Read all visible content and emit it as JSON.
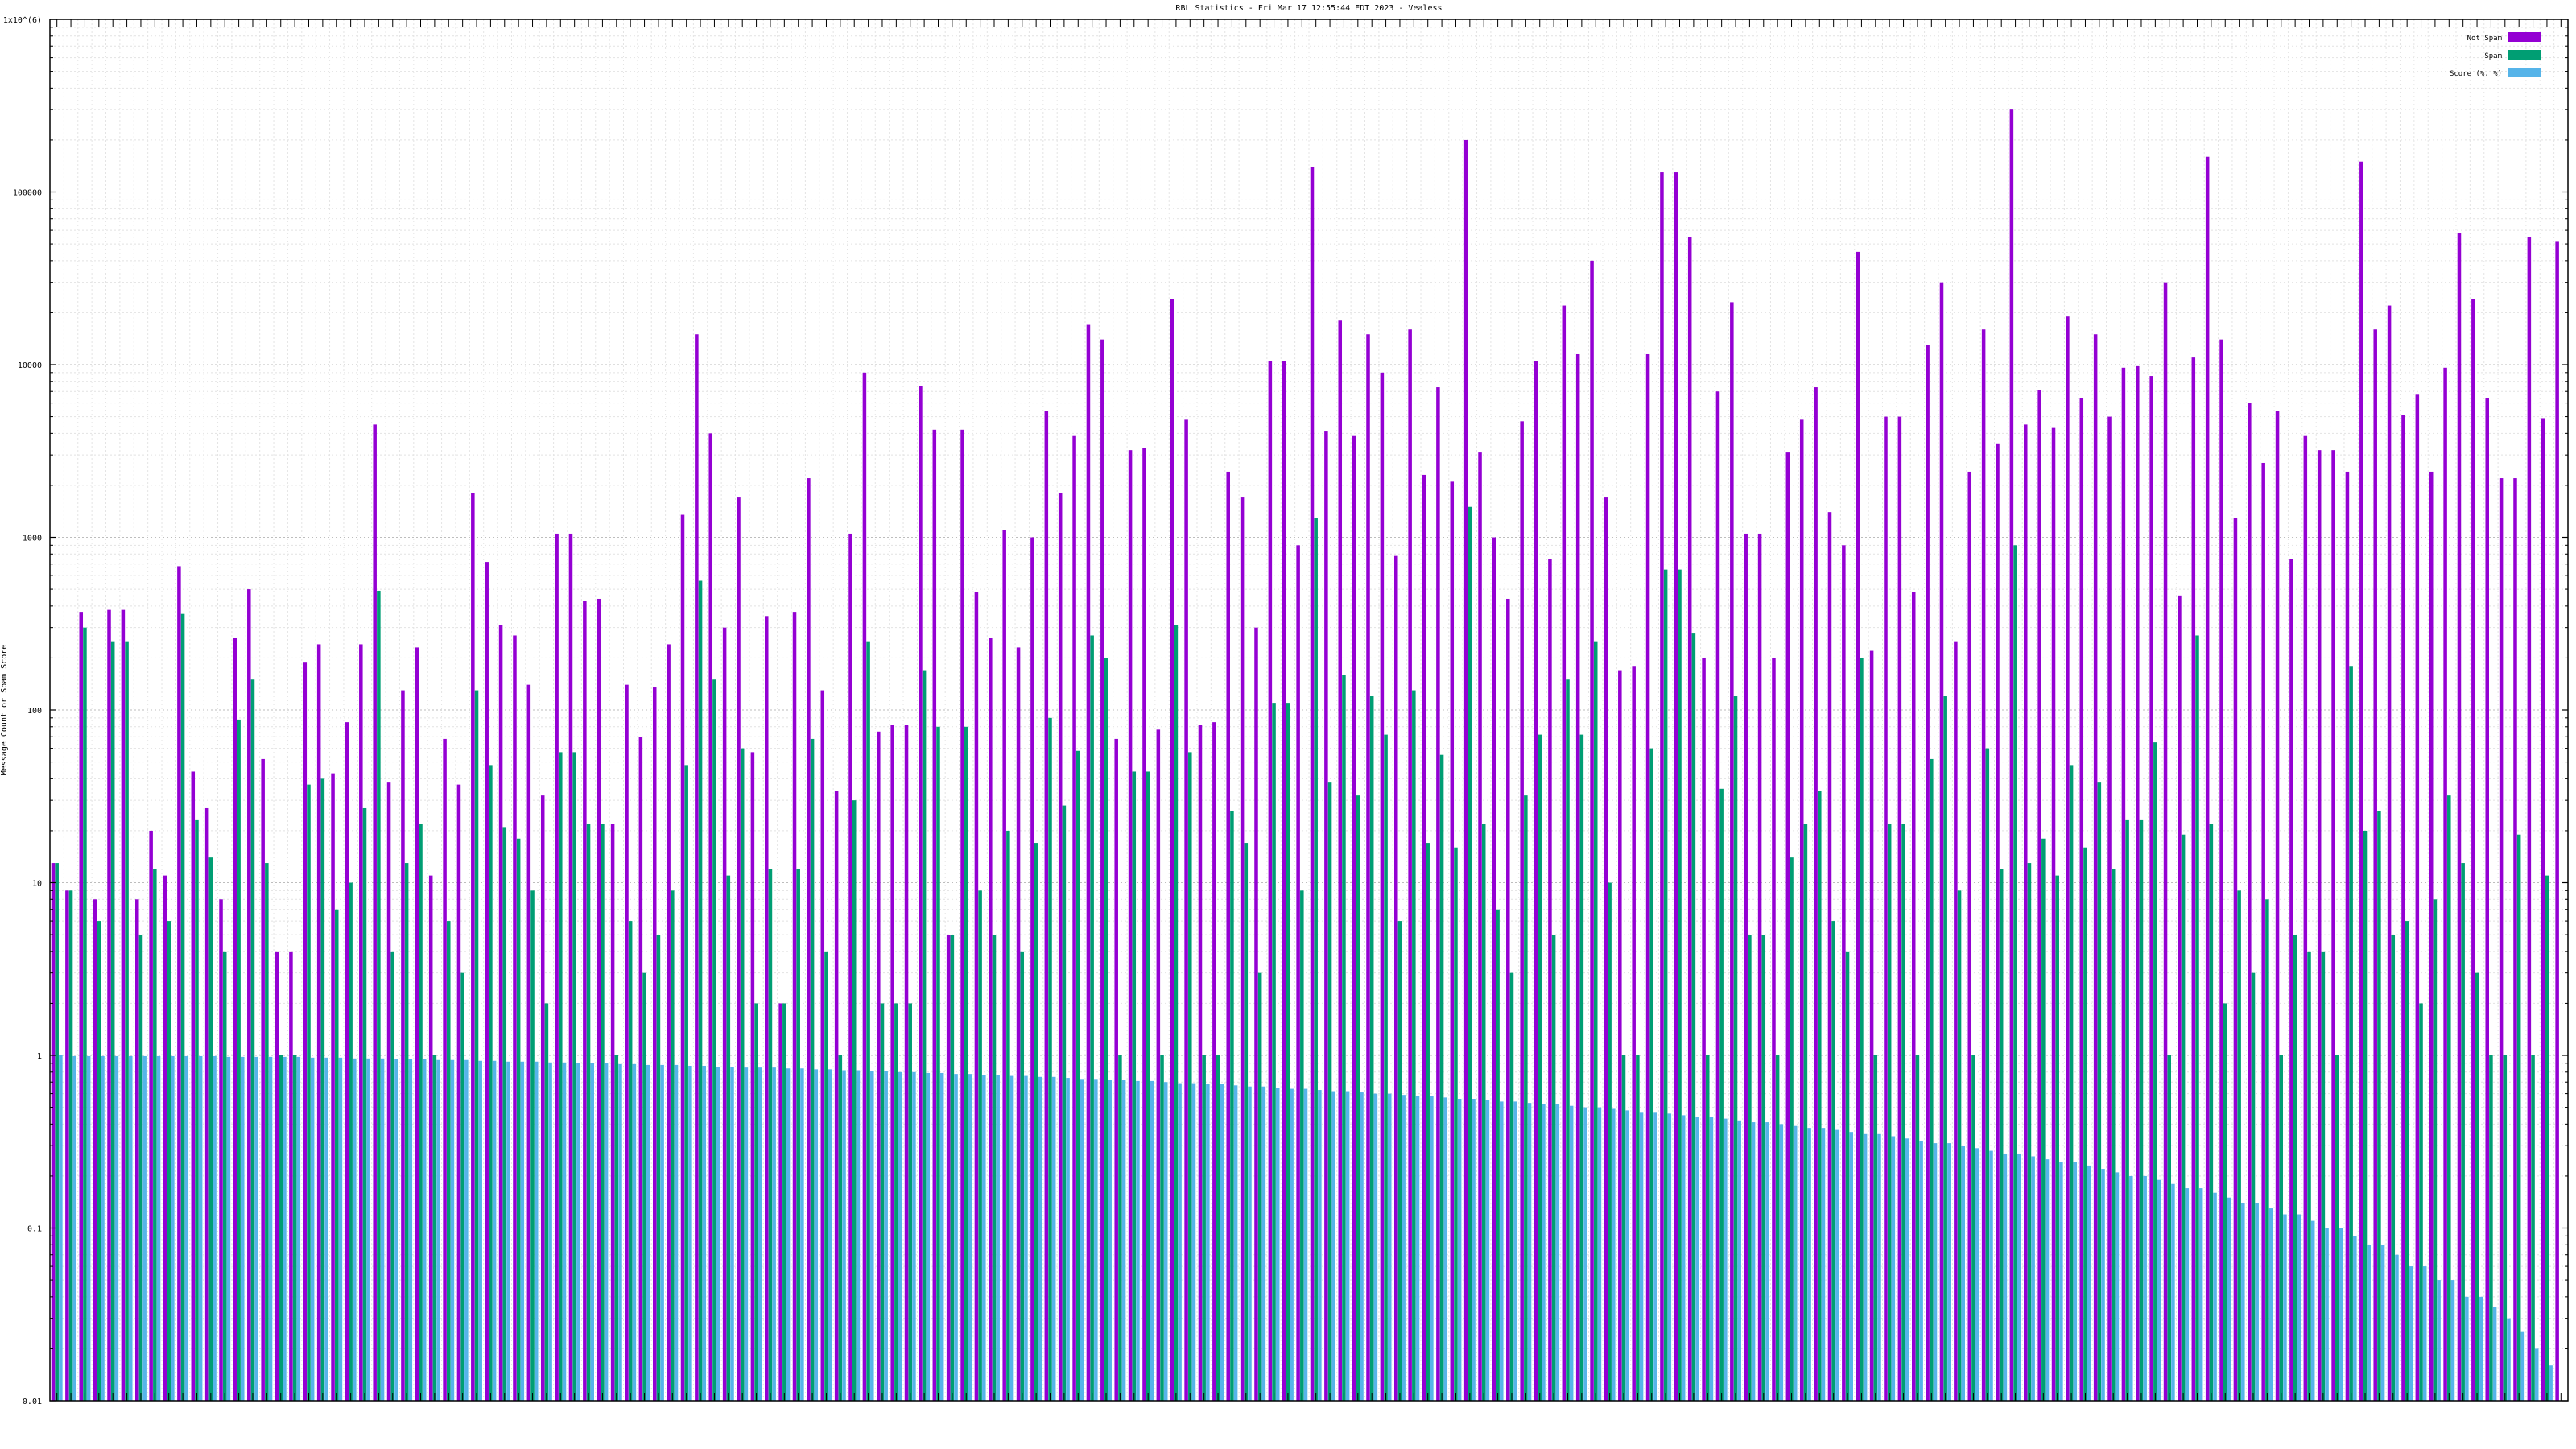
{
  "chart_data": {
    "type": "bar",
    "title": "RBL Statistics - Fri Mar 17 12:55:44 EDT 2023 - Vealess",
    "ylabel": "Message Count or Spam Score",
    "xlabel": "",
    "yscale": "log",
    "ylim": [
      0.01,
      1000000
    ],
    "ytick_labels": [
      "0.01",
      "0.1",
      "1",
      "10",
      "100",
      "1000",
      "10000",
      "100000",
      "1x10^(6)"
    ],
    "ytick_values": [
      0.01,
      0.1,
      1,
      10,
      100,
      1000,
      10000,
      100000,
      1000000
    ],
    "grid": true,
    "legend_position": "top-right",
    "colors": {
      "not_spam": "#9400d3",
      "spam": "#009e73",
      "score": "#56b4e9"
    },
    "series": [
      {
        "name": "Not Spam",
        "color": "#9400d3",
        "values": [
          13,
          9,
          370,
          8,
          380,
          380,
          8,
          20,
          11,
          680,
          44,
          27,
          8,
          260,
          500,
          52,
          4,
          4,
          190,
          240,
          43,
          85,
          240,
          4500,
          38,
          130,
          230,
          11,
          68,
          37,
          1800,
          720,
          310,
          270,
          140,
          32,
          1050,
          1050,
          430,
          440,
          22,
          140,
          70,
          135,
          240,
          1350,
          15000,
          4000,
          300,
          1700,
          57,
          350,
          2,
          370,
          2200,
          130,
          34,
          1050,
          9000,
          75,
          82,
          82,
          7500,
          4200,
          5,
          4200,
          480,
          260,
          1100,
          230,
          1000,
          5400,
          1800,
          3900,
          17000,
          14000,
          68,
          3200,
          3300,
          77,
          24000,
          4800,
          82,
          85,
          2400,
          1700,
          300,
          10500,
          10500,
          900,
          140000,
          4100,
          18000,
          3900,
          15000,
          9000,
          780,
          16000,
          2300,
          7400,
          2100,
          200000,
          3100,
          1000,
          440,
          4700,
          10500,
          750,
          22000,
          11500,
          40000,
          1700,
          170,
          180,
          11500,
          130000,
          130000,
          55000,
          200,
          7000,
          23000,
          1050,
          1050,
          200,
          3100,
          4800,
          7400,
          1400,
          900,
          45000,
          220,
          5000,
          5000,
          480,
          13000,
          30000,
          250,
          2400,
          16000,
          3500,
          300000,
          4500,
          7100,
          4300,
          19000,
          6400,
          15000,
          5000,
          9600,
          9800,
          8600,
          30000,
          460,
          11000,
          160000,
          14000,
          1300,
          6000,
          2700,
          5400,
          750,
          3900,
          3200,
          3200,
          2400,
          150000,
          16000,
          22000,
          5100,
          6700,
          2400,
          9600,
          58000,
          24000,
          6400,
          2200,
          2200,
          55000,
          4900,
          52000
        ]
      },
      {
        "name": "Spam",
        "color": "#009e73",
        "values": [
          13,
          9,
          300,
          6,
          250,
          250,
          5,
          12,
          6,
          360,
          23,
          14,
          4,
          88,
          150,
          13,
          1,
          1,
          37,
          40,
          7,
          10,
          27,
          490,
          4,
          13,
          22,
          1,
          6,
          3,
          130,
          48,
          21,
          18,
          9,
          2,
          57,
          57,
          22,
          22,
          1,
          6,
          3,
          5,
          9,
          48,
          560,
          150,
          11,
          60,
          2,
          12,
          2,
          12,
          68,
          4,
          1,
          30,
          250,
          2,
          2,
          2,
          170,
          80,
          5,
          80,
          9,
          5,
          20,
          4,
          17,
          90,
          28,
          58,
          270,
          200,
          1,
          44,
          44,
          1,
          310,
          57,
          1,
          1,
          26,
          17,
          3,
          110,
          110,
          9,
          1300,
          38,
          160,
          32,
          120,
          72,
          6,
          130,
          17,
          55,
          16,
          1500,
          22,
          7,
          3,
          32,
          72,
          5,
          150,
          72,
          250,
          10,
          1,
          1,
          60,
          650,
          650,
          280,
          1,
          35,
          120,
          5,
          5,
          1,
          14,
          22,
          34,
          6,
          4,
          200,
          1,
          22,
          22,
          1,
          52,
          120,
          9,
          1,
          60,
          12,
          900,
          13,
          18,
          11,
          48,
          16,
          38,
          12,
          23,
          23,
          65,
          1,
          19,
          270,
          22,
          2,
          9,
          3,
          8,
          1,
          5,
          4,
          4,
          1,
          180,
          20,
          26,
          5,
          6,
          2,
          8,
          32,
          13,
          3,
          1,
          1,
          19,
          1,
          11
        ]
      },
      {
        "name": "Score (%, %)",
        "color": "#56b4e9",
        "values": [
          1,
          0.99,
          0.99,
          0.99,
          0.99,
          0.99,
          0.99,
          0.99,
          0.99,
          0.99,
          0.99,
          0.99,
          0.98,
          0.98,
          0.98,
          0.98,
          0.98,
          0.98,
          0.97,
          0.97,
          0.97,
          0.96,
          0.96,
          0.96,
          0.95,
          0.95,
          0.95,
          0.94,
          0.94,
          0.94,
          0.93,
          0.93,
          0.92,
          0.92,
          0.92,
          0.91,
          0.91,
          0.9,
          0.9,
          0.9,
          0.89,
          0.89,
          0.88,
          0.88,
          0.88,
          0.87,
          0.87,
          0.86,
          0.86,
          0.85,
          0.85,
          0.85,
          0.84,
          0.84,
          0.83,
          0.83,
          0.82,
          0.82,
          0.81,
          0.81,
          0.8,
          0.8,
          0.79,
          0.79,
          0.78,
          0.78,
          0.77,
          0.77,
          0.76,
          0.76,
          0.75,
          0.75,
          0.74,
          0.73,
          0.73,
          0.72,
          0.72,
          0.71,
          0.71,
          0.7,
          0.69,
          0.69,
          0.68,
          0.68,
          0.67,
          0.66,
          0.66,
          0.65,
          0.64,
          0.64,
          0.63,
          0.62,
          0.62,
          0.61,
          0.6,
          0.6,
          0.59,
          0.58,
          0.58,
          0.57,
          0.56,
          0.56,
          0.55,
          0.54,
          0.54,
          0.53,
          0.52,
          0.52,
          0.51,
          0.5,
          0.5,
          0.49,
          0.48,
          0.47,
          0.47,
          0.46,
          0.45,
          0.44,
          0.44,
          0.43,
          0.42,
          0.41,
          0.41,
          0.4,
          0.39,
          0.38,
          0.38,
          0.37,
          0.36,
          0.35,
          0.35,
          0.34,
          0.33,
          0.32,
          0.31,
          0.31,
          0.3,
          0.29,
          0.28,
          0.27,
          0.27,
          0.26,
          0.25,
          0.24,
          0.24,
          0.23,
          0.22,
          0.21,
          0.2,
          0.2,
          0.19,
          0.18,
          0.17,
          0.17,
          0.16,
          0.15,
          0.14,
          0.14,
          0.13,
          0.12,
          0.12,
          0.11,
          0.1,
          0.1,
          0.09,
          0.08,
          0.08,
          0.07,
          0.06,
          0.06,
          0.05,
          0.05,
          0.04,
          0.04,
          0.035,
          0.03,
          0.025,
          0.02,
          0.016
        ]
      }
    ]
  }
}
